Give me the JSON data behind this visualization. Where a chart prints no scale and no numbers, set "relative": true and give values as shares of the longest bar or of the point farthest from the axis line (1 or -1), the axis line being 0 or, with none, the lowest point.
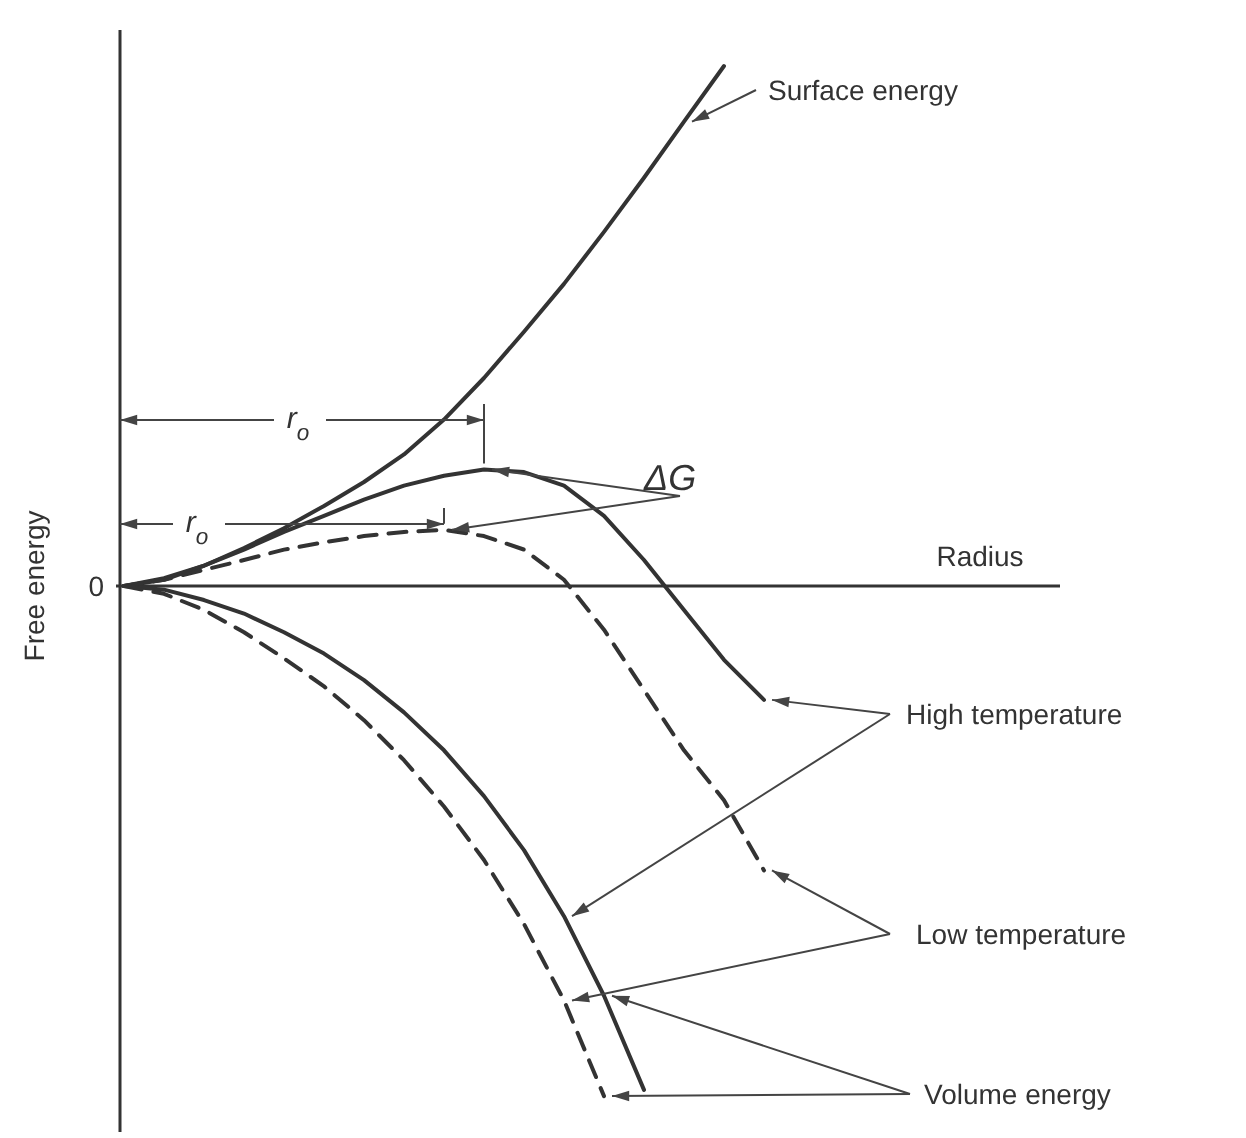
{
  "chart_data": {
    "type": "line",
    "relative": true,
    "ylabel": "Free energy",
    "categories": [
      null,
      null,
      null,
      null,
      null,
      null,
      null,
      null,
      null,
      null,
      null,
      null,
      null,
      null,
      null,
      null,
      null
    ],
    "series": [
      {
        "color": "#333333",
        "line_style": "solid",
        "values": [
          0,
          0.012,
          0.039,
          0.073,
          0.111,
          0.154,
          0.2,
          0.253,
          0.32,
          0.4,
          0.489,
          0.581,
          0.681,
          0.785,
          0.893,
          1,
          null
        ]
      },
      {
        "color": "#333333",
        "line_style": "solid",
        "values": [
          0,
          0.015,
          0.039,
          0.07,
          0.104,
          0.135,
          0.166,
          0.193,
          0.212,
          0.224,
          0.219,
          0.193,
          0.135,
          0.05,
          -0.046,
          -0.142,
          -0.219
        ]
      },
      {
        "color": "#333333",
        "line_style": "dashed",
        "values": [
          0,
          0.012,
          0.031,
          0.05,
          0.07,
          0.084,
          0.096,
          0.104,
          0.108,
          0.096,
          0.07,
          0.012,
          -0.084,
          -0.2,
          -0.316,
          -0.412,
          -0.547
        ]
      },
      {
        "color": "#333333",
        "line_style": "solid",
        "values": [
          0,
          -0.007,
          -0.027,
          -0.053,
          -0.089,
          -0.13,
          -0.181,
          -0.243,
          -0.316,
          -0.404,
          -0.508,
          -0.635,
          -0.788,
          -0.969,
          null,
          null,
          null
        ]
      },
      {
        "color": "#333333",
        "line_style": "dashed",
        "values": [
          0,
          -0.015,
          -0.046,
          -0.089,
          -0.139,
          -0.193,
          -0.258,
          -0.335,
          -0.424,
          -0.527,
          -0.65,
          -0.797,
          -0.981,
          null,
          null,
          null,
          null
        ]
      }
    ],
    "annotations": [
      "0",
      "Surface energy",
      "ΔG",
      "High temperature",
      "Low temperature",
      "Volume energy",
      "r$_{o}$",
      "r$_{o}$",
      "Radius"
    ],
    "marker": "none"
  }
}
